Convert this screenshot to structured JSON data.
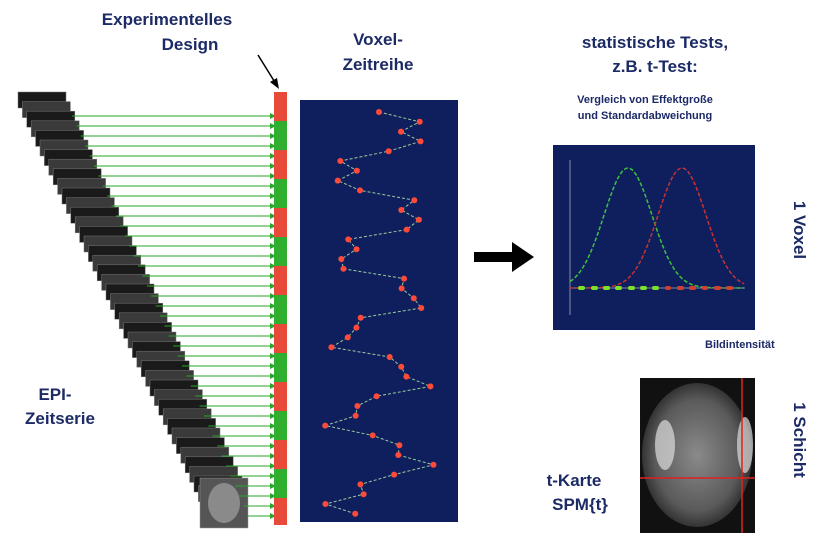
{
  "design_label": [
    "Experimentelles",
    "Design"
  ],
  "voxel_label": [
    "Voxel-",
    "Zeitreihe"
  ],
  "tests_title": [
    "statistische Tests,",
    "z.B. t-Test:"
  ],
  "tests_subtitle": [
    "Vergleich von Effektgroße",
    "und Standardabweichung"
  ],
  "x_axis_label": "Bildintensität",
  "voxel_side_label": "1 Voxel",
  "slice_side_label": "1 Schicht",
  "epi_label": [
    "EPI-",
    "Zeitserie"
  ],
  "tmap_label": [
    "t-Karte",
    "SPM{t}"
  ]
}
